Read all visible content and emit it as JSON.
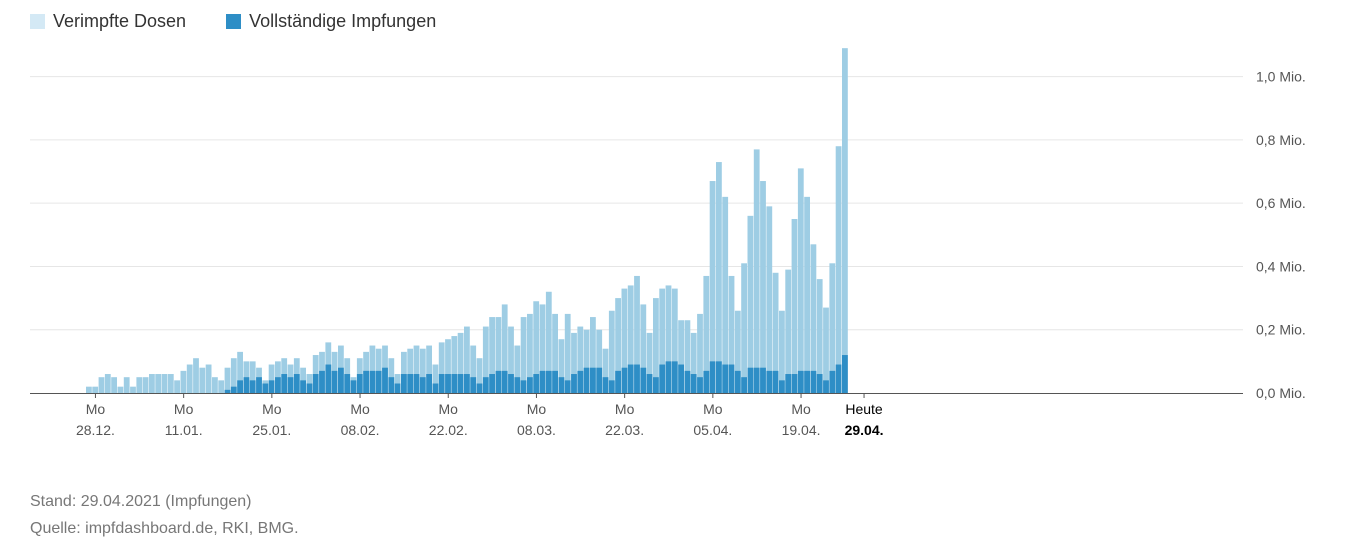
{
  "legend": {
    "doses_label": "Verimpfte Dosen",
    "complete_label": "Vollständige Impfungen"
  },
  "colors": {
    "doses": "#9ecde4",
    "complete": "#2e8ec6",
    "legend_doses": "#d4e9f5",
    "legend_complete": "#2e8ec6",
    "grid": "#e6e6e6",
    "axis": "#555555"
  },
  "footer": {
    "stand": "Stand: 29.04.2021 (Impfungen)",
    "source": "Quelle: impfdashboard.de, RKI, BMG."
  },
  "chart_data": {
    "type": "bar",
    "stacked": "overlay",
    "title": "",
    "x_start_date": "2020-12-27",
    "x_end_date": "2021-04-29",
    "ylim": [
      0,
      1.1
    ],
    "y_unit": "Mio.",
    "y_ticks": [
      "0,0 Mio.",
      "0,2 Mio.",
      "0,4 Mio.",
      "0,6 Mio.",
      "0,8 Mio.",
      "1,0 Mio."
    ],
    "y_tick_values": [
      0,
      0.2,
      0.4,
      0.6,
      0.8,
      1.0
    ],
    "x_ticks": [
      {
        "weekday": "Mo",
        "date": "28.12."
      },
      {
        "weekday": "Mo",
        "date": "11.01."
      },
      {
        "weekday": "Mo",
        "date": "25.01."
      },
      {
        "weekday": "Mo",
        "date": "08.02."
      },
      {
        "weekday": "Mo",
        "date": "22.02."
      },
      {
        "weekday": "Mo",
        "date": "08.03."
      },
      {
        "weekday": "Mo",
        "date": "22.03."
      },
      {
        "weekday": "Mo",
        "date": "05.04."
      },
      {
        "weekday": "Mo",
        "date": "19.04."
      },
      {
        "weekday": "Heute",
        "date": "29.04.",
        "highlight": true
      }
    ],
    "series": [
      {
        "name": "Verimpfte Dosen",
        "values": [
          0.02,
          0.02,
          0.05,
          0.06,
          0.05,
          0.02,
          0.05,
          0.02,
          0.05,
          0.05,
          0.06,
          0.06,
          0.06,
          0.06,
          0.04,
          0.07,
          0.09,
          0.11,
          0.08,
          0.09,
          0.05,
          0.04,
          0.08,
          0.11,
          0.13,
          0.1,
          0.1,
          0.08,
          0.04,
          0.09,
          0.1,
          0.11,
          0.09,
          0.11,
          0.08,
          0.06,
          0.12,
          0.13,
          0.16,
          0.13,
          0.15,
          0.11,
          0.05,
          0.11,
          0.13,
          0.15,
          0.14,
          0.15,
          0.11,
          0.06,
          0.13,
          0.14,
          0.15,
          0.14,
          0.15,
          0.09,
          0.16,
          0.17,
          0.18,
          0.19,
          0.21,
          0.15,
          0.11,
          0.21,
          0.24,
          0.24,
          0.28,
          0.21,
          0.15,
          0.24,
          0.25,
          0.29,
          0.28,
          0.32,
          0.25,
          0.17,
          0.25,
          0.19,
          0.21,
          0.2,
          0.24,
          0.2,
          0.14,
          0.26,
          0.3,
          0.33,
          0.34,
          0.37,
          0.28,
          0.19,
          0.3,
          0.33,
          0.34,
          0.33,
          0.23,
          0.23,
          0.19,
          0.25,
          0.37,
          0.67,
          0.73,
          0.62,
          0.37,
          0.26,
          0.41,
          0.56,
          0.77,
          0.67,
          0.59,
          0.38,
          0.26,
          0.39,
          0.55,
          0.71,
          0.62,
          0.47,
          0.36,
          0.27,
          0.41,
          0.78,
          1.09
        ]
      },
      {
        "name": "Vollständige Impfungen",
        "values": [
          0,
          0,
          0,
          0,
          0,
          0,
          0,
          0,
          0,
          0,
          0,
          0,
          0,
          0,
          0,
          0,
          0,
          0,
          0,
          0,
          0,
          0,
          0.01,
          0.02,
          0.04,
          0.05,
          0.04,
          0.05,
          0.03,
          0.04,
          0.05,
          0.06,
          0.05,
          0.06,
          0.04,
          0.03,
          0.06,
          0.07,
          0.09,
          0.07,
          0.08,
          0.06,
          0.04,
          0.06,
          0.07,
          0.07,
          0.07,
          0.08,
          0.05,
          0.03,
          0.06,
          0.06,
          0.06,
          0.05,
          0.06,
          0.03,
          0.06,
          0.06,
          0.06,
          0.06,
          0.06,
          0.05,
          0.03,
          0.05,
          0.06,
          0.07,
          0.07,
          0.06,
          0.05,
          0.04,
          0.05,
          0.06,
          0.07,
          0.07,
          0.07,
          0.05,
          0.04,
          0.06,
          0.07,
          0.08,
          0.08,
          0.08,
          0.05,
          0.04,
          0.07,
          0.08,
          0.09,
          0.09,
          0.08,
          0.06,
          0.05,
          0.09,
          0.1,
          0.1,
          0.09,
          0.07,
          0.06,
          0.05,
          0.07,
          0.1,
          0.1,
          0.09,
          0.09,
          0.07,
          0.05,
          0.08,
          0.08,
          0.08,
          0.07,
          0.07,
          0.04,
          0.06,
          0.06,
          0.07,
          0.07,
          0.07,
          0.06,
          0.04,
          0.07,
          0.09,
          0.12
        ]
      }
    ]
  }
}
